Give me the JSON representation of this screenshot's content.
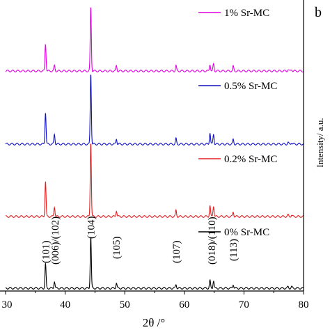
{
  "chart_data": {
    "type": "line",
    "panel_label": "b",
    "xlabel": "2θ /°",
    "ylabel": "Intensity/ a.u.",
    "xlim": [
      30,
      80
    ],
    "xticks": [
      "30",
      "40",
      "50",
      "60",
      "70",
      "80"
    ],
    "legend_placement": "top-right of each trace",
    "peak_positions": [
      36.7,
      38.2,
      44.3,
      48.6,
      58.6,
      64.3,
      64.9,
      68.2,
      77.4,
      78.0
    ],
    "peak_labels": [
      {
        "text": "(101)",
        "x": 36.7
      },
      {
        "text": "(006)/(102)",
        "x": 38.3
      },
      {
        "text": "(104)",
        "x": 44.3
      },
      {
        "text": "(105)",
        "x": 48.6
      },
      {
        "text": "(107)",
        "x": 58.6
      },
      {
        "text": "(018)/(110)",
        "x": 64.6
      },
      {
        "text": "(113)",
        "x": 68.2
      }
    ],
    "series": [
      {
        "name": "1% Sr-MC",
        "color": "#e000e0",
        "peaks": [
          0.36,
          0.07,
          0.84,
          0.07,
          0.07,
          0.09,
          0.09,
          0.06,
          0.02,
          0.02
        ]
      },
      {
        "name": "0.5% Sr-MC",
        "color": "#1010c0",
        "peaks": [
          0.42,
          0.13,
          0.93,
          0.07,
          0.07,
          0.15,
          0.13,
          0.06,
          0.02,
          0.02
        ]
      },
      {
        "name": "0.2% Sr-MC",
        "color": "#e02020",
        "peaks": [
          0.46,
          0.13,
          0.98,
          0.08,
          0.08,
          0.14,
          0.14,
          0.06,
          0.02,
          0.02
        ]
      },
      {
        "name": "0% Sr-MC",
        "color": "#000000",
        "peaks": [
          0.32,
          0.09,
          0.68,
          0.07,
          0.05,
          0.1,
          0.1,
          0.05,
          0.02,
          0.02
        ]
      }
    ]
  }
}
